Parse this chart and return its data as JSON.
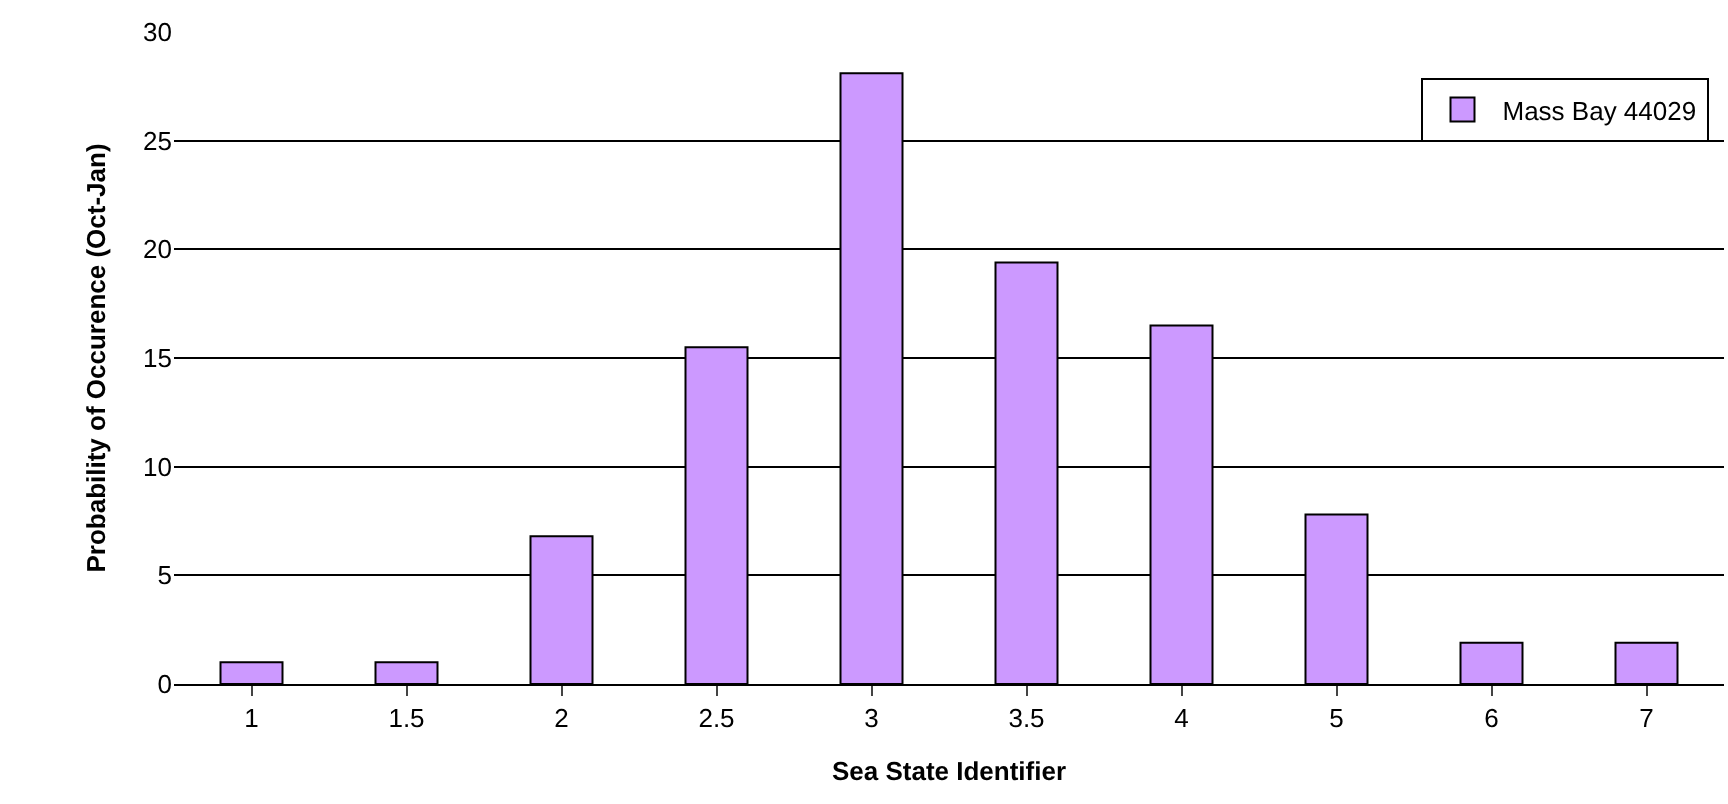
{
  "chart_data": {
    "type": "bar",
    "xlabel": "Sea State Identifier",
    "ylabel": "Probability of Occurence (Oct-Jan)",
    "categories": [
      "1",
      "1.5",
      "2",
      "2.5",
      "3",
      "3.5",
      "4",
      "5",
      "6",
      "7"
    ],
    "series": [
      {
        "name": "Mass Bay 44029",
        "color": "#cc99ff",
        "values": [
          1.0,
          1.0,
          6.8,
          15.5,
          28.1,
          19.4,
          16.5,
          7.8,
          1.9,
          1.9
        ]
      }
    ],
    "ylim": [
      0,
      30
    ],
    "yticks": [
      0,
      5,
      10,
      15,
      20,
      25,
      30
    ],
    "grid": "y",
    "legend": "top right"
  }
}
